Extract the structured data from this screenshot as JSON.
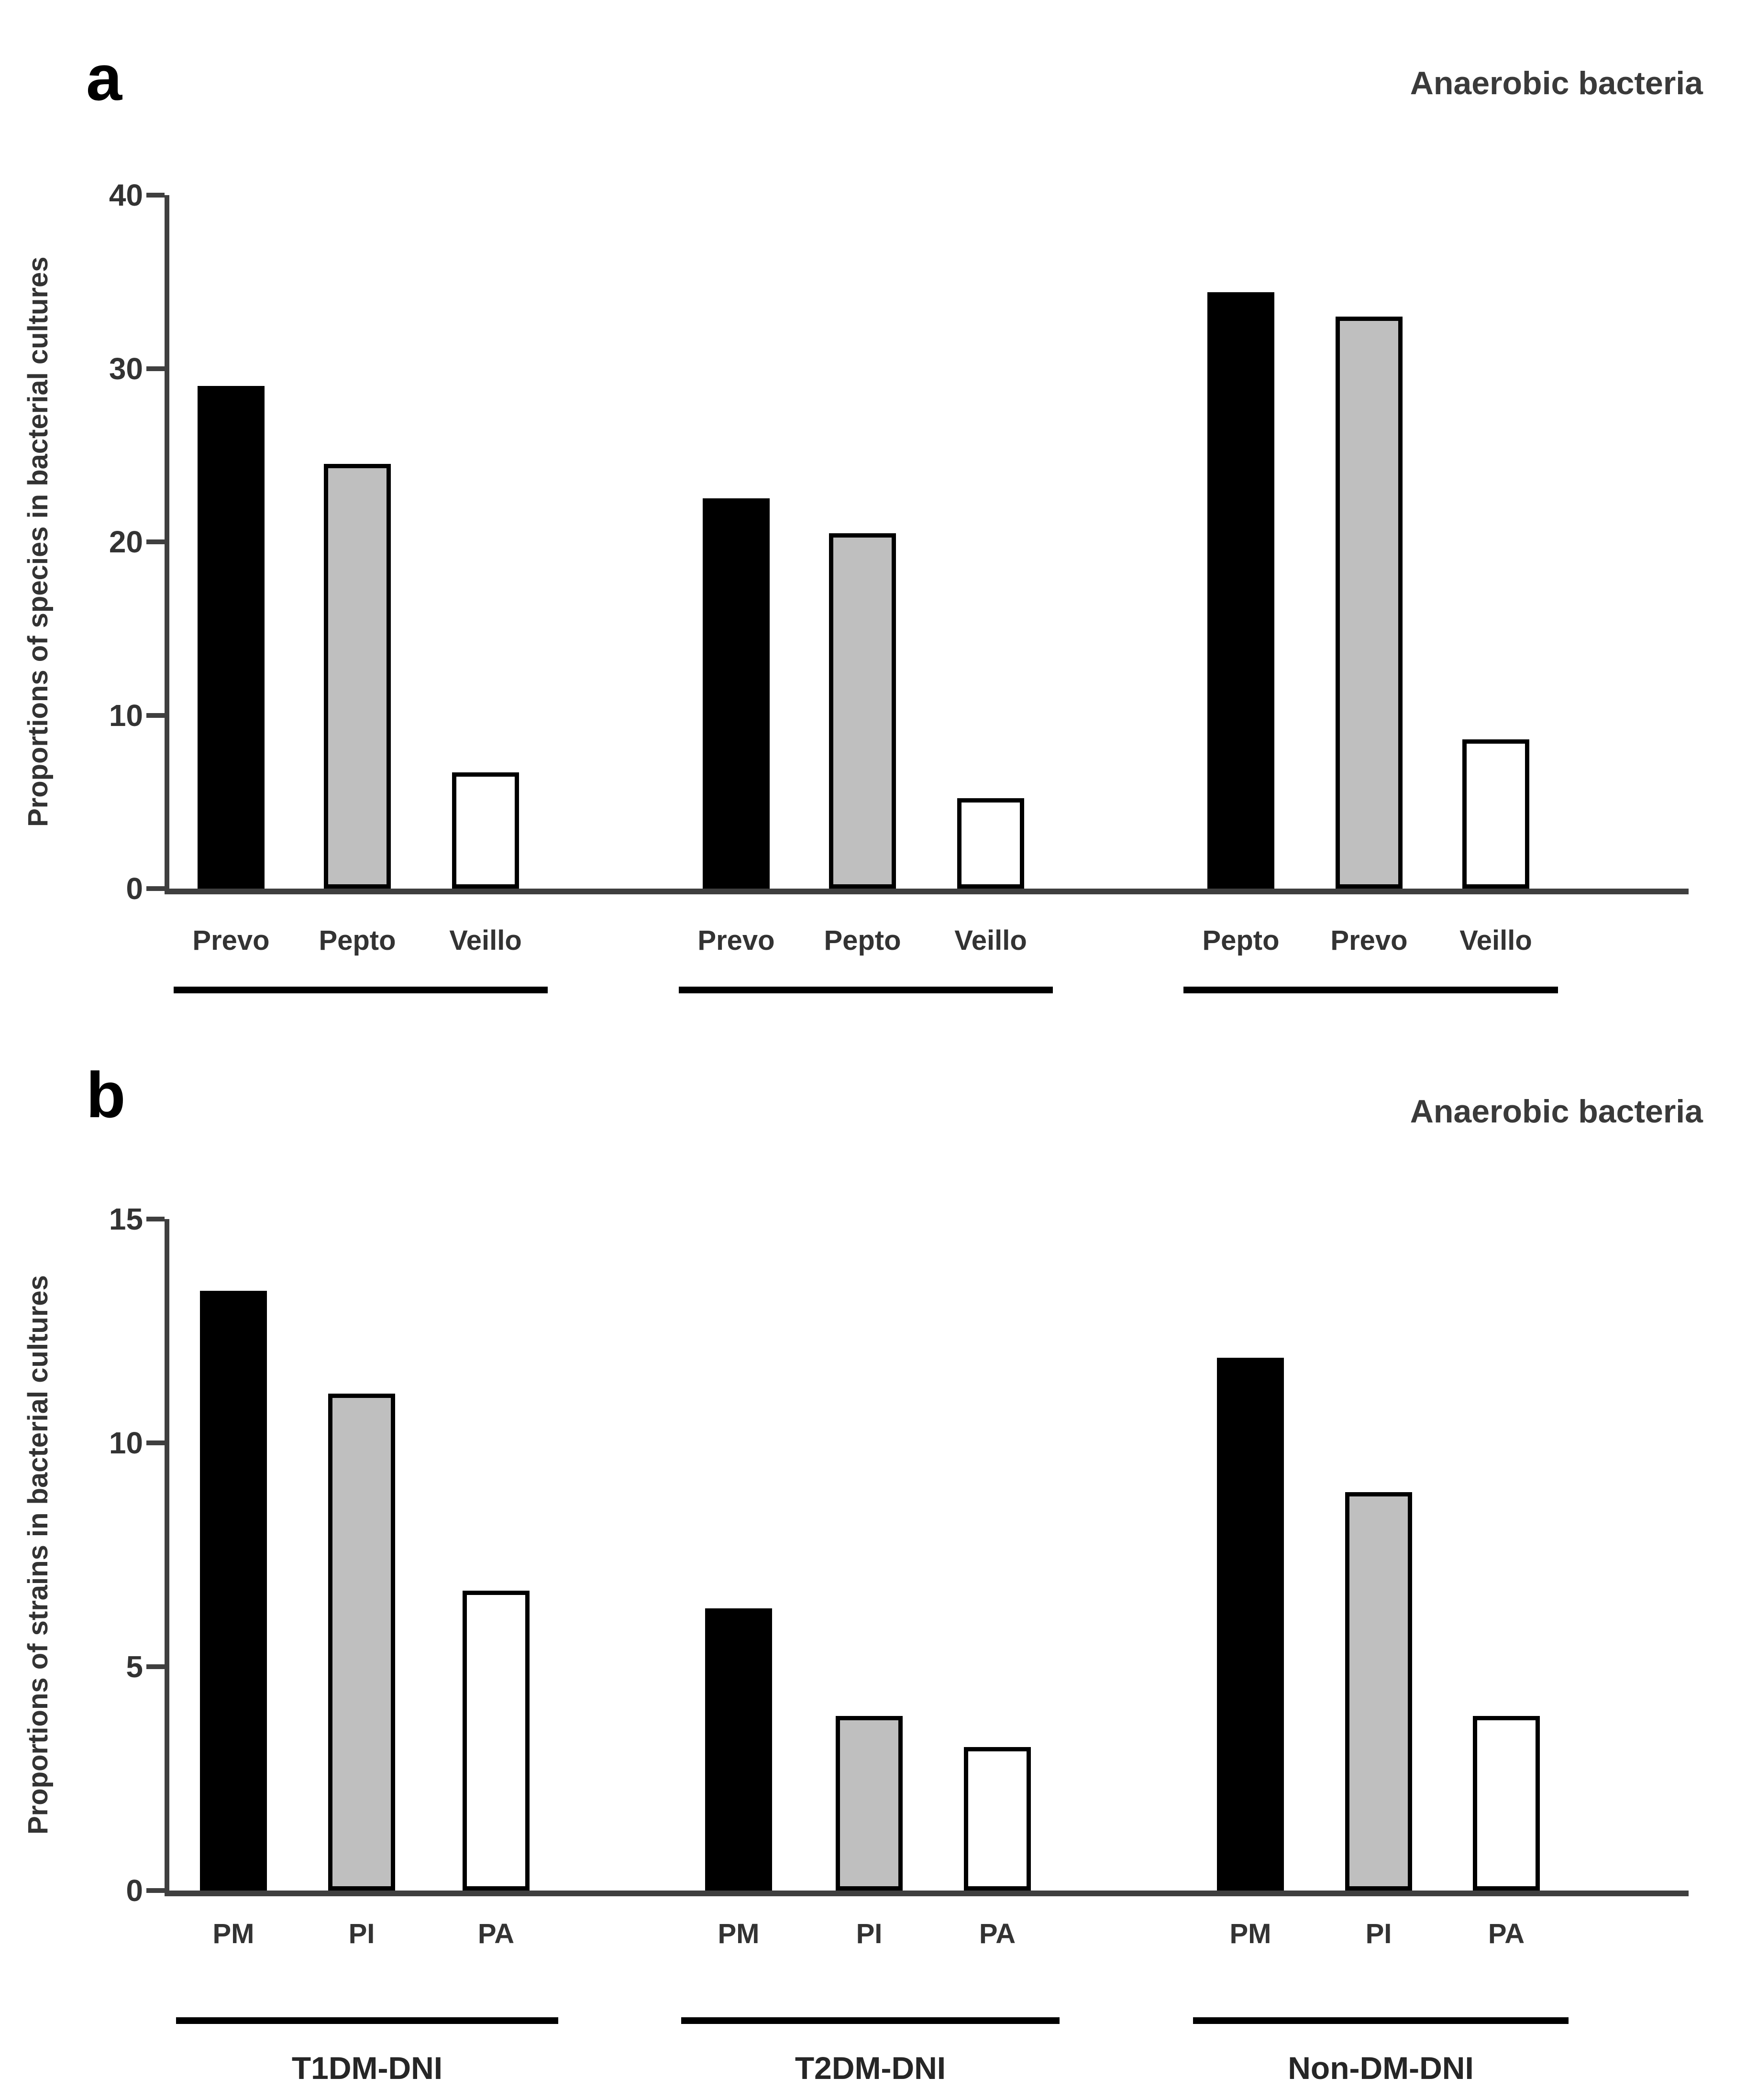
{
  "colors": {
    "axis": "#3f3f3f",
    "text": "#333333",
    "underline": "#000000",
    "bar_black": "#000000",
    "bar_gray": "#bfbfbf",
    "bar_white": "#ffffff"
  },
  "chart_data": [
    {
      "type": "bar",
      "panel_letter": "a",
      "title": "Anaerobic bacteria",
      "ylabel": "Proportions of species in bacterial cultures",
      "ylim": [
        0,
        40
      ],
      "yticks": [
        0,
        10,
        20,
        30,
        40
      ],
      "grid": false,
      "legend": "none",
      "groups": [
        {
          "label": "",
          "bars": [
            {
              "label": "Prevo",
              "value": 29.0,
              "color": "bar_black"
            },
            {
              "label": "Pepto",
              "value": 24.5,
              "color": "bar_gray"
            },
            {
              "label": "Veillo",
              "value": 6.7,
              "color": "bar_white"
            }
          ]
        },
        {
          "label": "",
          "bars": [
            {
              "label": "Prevo",
              "value": 22.5,
              "color": "bar_black"
            },
            {
              "label": "Pepto",
              "value": 20.5,
              "color": "bar_gray"
            },
            {
              "label": "Veillo",
              "value": 5.2,
              "color": "bar_white"
            }
          ]
        },
        {
          "label": "",
          "bars": [
            {
              "label": "Pepto",
              "value": 34.4,
              "color": "bar_black"
            },
            {
              "label": "Prevo",
              "value": 33.0,
              "color": "bar_gray"
            },
            {
              "label": "Veillo",
              "value": 8.6,
              "color": "bar_white"
            }
          ]
        }
      ]
    },
    {
      "type": "bar",
      "panel_letter": "b",
      "title": "Anaerobic bacteria",
      "ylabel": "Proportions of strains in bacterial cultures",
      "ylim": [
        0,
        15
      ],
      "yticks": [
        0,
        5,
        10,
        15
      ],
      "grid": false,
      "legend": "none",
      "groups": [
        {
          "label": "T1DM-DNI",
          "bars": [
            {
              "label": "PM",
              "value": 13.4,
              "color": "bar_black"
            },
            {
              "label": "PI",
              "value": 11.1,
              "color": "bar_gray"
            },
            {
              "label": "PA",
              "value": 6.7,
              "color": "bar_white"
            }
          ]
        },
        {
          "label": "T2DM-DNI",
          "bars": [
            {
              "label": "PM",
              "value": 6.3,
              "color": "bar_black"
            },
            {
              "label": "PI",
              "value": 3.9,
              "color": "bar_gray"
            },
            {
              "label": "PA",
              "value": 3.2,
              "color": "bar_white"
            }
          ]
        },
        {
          "label": "Non-DM-DNI",
          "bars": [
            {
              "label": "PM",
              "value": 11.9,
              "color": "bar_black"
            },
            {
              "label": "PI",
              "value": 8.9,
              "color": "bar_gray"
            },
            {
              "label": "PA",
              "value": 3.9,
              "color": "bar_white"
            }
          ]
        }
      ]
    }
  ]
}
